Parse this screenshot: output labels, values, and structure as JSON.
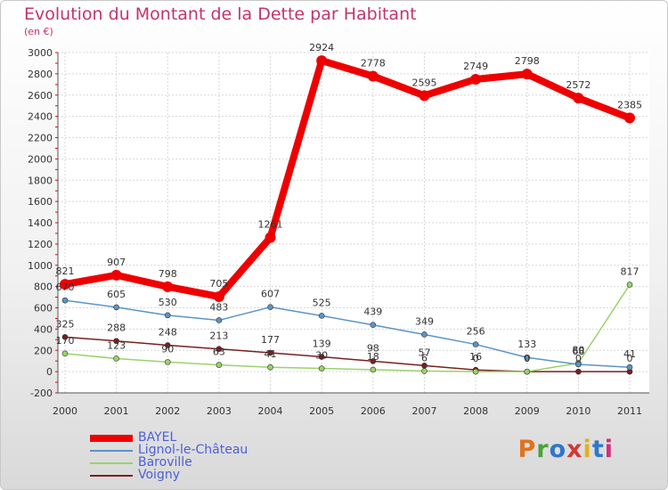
{
  "title": "Evolution du Montant de la Dette par Habitant",
  "subtitle": "(en €)",
  "logo": {
    "text": "Proxiti",
    "letters": [
      "P",
      "r",
      "o",
      "x",
      "i",
      "t",
      "i"
    ],
    "colors": [
      "#e0731f",
      "#4aa23a",
      "#2f77c9",
      "#d23a33",
      "#e0b11f",
      "#2f77c9",
      "#d0307c"
    ]
  },
  "chart_data": {
    "type": "line",
    "title": "Evolution du Montant de la Dette par Habitant",
    "ylabel": "(en €)",
    "xlabel": "",
    "x": [
      "2000",
      "2001",
      "2002",
      "2003",
      "2004",
      "2005",
      "2006",
      "2007",
      "2008",
      "2009",
      "2010",
      "2011"
    ],
    "ylim": [
      -200,
      3000
    ],
    "yticks": [
      "-200",
      "0",
      "200",
      "400",
      "600",
      "800",
      "1000",
      "1200",
      "1400",
      "1600",
      "1800",
      "2000",
      "2200",
      "2400",
      "2600",
      "2800",
      "3000"
    ],
    "grid": true,
    "legend_position": "bottom-left",
    "series": [
      {
        "name": "BAYEL",
        "color": "#ee0000",
        "values": [
          821,
          907,
          798,
          705,
          1261,
          2924,
          2778,
          2595,
          2749,
          2798,
          2572,
          2385
        ],
        "labels": [
          "821",
          "907",
          "798",
          "705",
          "1261",
          "2924",
          "2778",
          "2595",
          "2749",
          "2798",
          "2572",
          "2385"
        ]
      },
      {
        "name": "Lignol-le-Château",
        "color": "#5b94c6",
        "values": [
          670,
          605,
          530,
          483,
          607,
          525,
          439,
          349,
          256,
          133,
          68,
          41
        ],
        "labels": [
          "670",
          "605",
          "530",
          "483",
          "607",
          "525",
          "439",
          "349",
          "256",
          "133",
          "68",
          "41"
        ]
      },
      {
        "name": "Baroville",
        "color": "#9ad36a",
        "values": [
          170,
          123,
          90,
          63,
          41,
          30,
          18,
          6,
          0,
          0,
          80,
          817
        ],
        "labels": [
          "170",
          "123",
          "90",
          "63",
          "41",
          "30",
          "18",
          "6",
          "0",
          "0",
          "80",
          "817"
        ]
      },
      {
        "name": "Voigny",
        "color": "#7a1f1f",
        "values": [
          325,
          288,
          248,
          213,
          177,
          139,
          98,
          57,
          16,
          0,
          0,
          0
        ],
        "labels": [
          "325",
          "288",
          "248",
          "213",
          "177",
          "139",
          "98",
          "57",
          "16",
          "0",
          "0",
          "0"
        ]
      }
    ]
  }
}
